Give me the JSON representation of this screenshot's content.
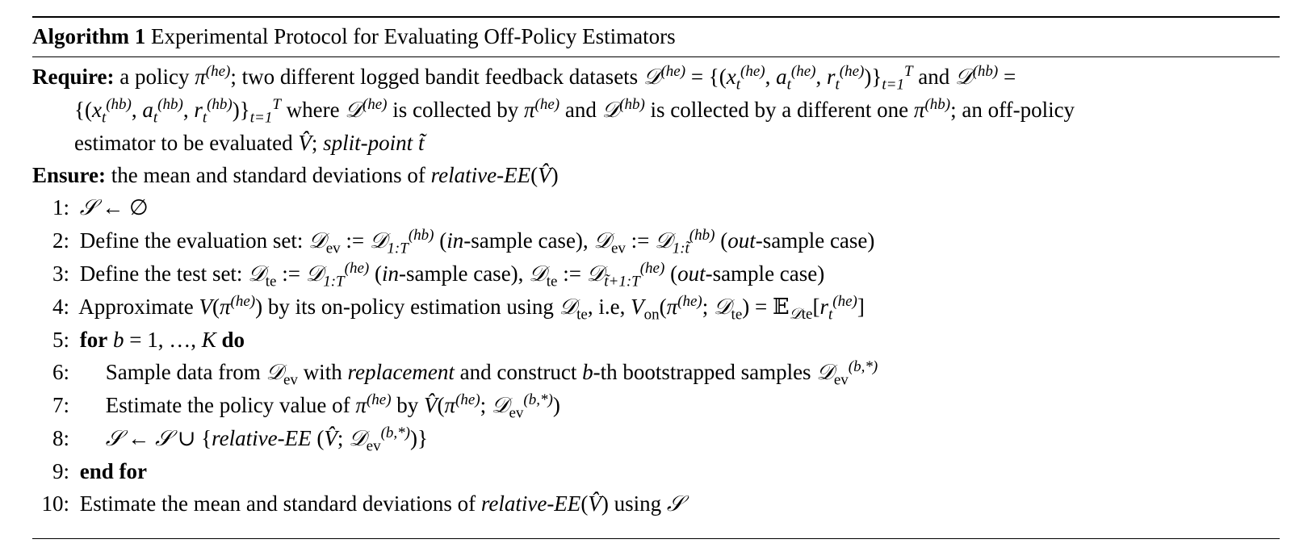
{
  "caption": {
    "label": "Algorithm 1",
    "title": "Experimental Protocol for Evaluating Off-Policy Estimators"
  },
  "require": {
    "keyword": "Require:",
    "t1": "a policy",
    "t2": "; two different logged bandit feedback datasets",
    "t3": "and",
    "t4": "where",
    "t5": "is collected by",
    "t6": "and",
    "t7": "is collected by a different one",
    "t8": "; an off-policy",
    "t9": "estimator to be evaluated",
    "t10": "split-point"
  },
  "ensure": {
    "keyword": "Ensure:",
    "text": "the mean and standard deviations of",
    "metric": "relative-EE"
  },
  "steps": [
    {
      "num": "1:"
    },
    {
      "num": "2:",
      "a": "Define the evaluation set:",
      "in_case": "in",
      "case_rest": "-sample case),",
      "out_case": "out",
      "case_rest2": "-sample case)"
    },
    {
      "num": "3:",
      "a": "Define the test set:",
      "in_case": "in",
      "case_rest": "-sample case),",
      "out_case": "out",
      "case_rest2": "-sample case)"
    },
    {
      "num": "4:",
      "a": "Approximate",
      "b": "by its on-policy estimation using",
      "c": ", i.e,"
    },
    {
      "num": "5:",
      "kw1": "for",
      "kw2": "do"
    },
    {
      "num": "6:",
      "a": "Sample data from",
      "b": "with",
      "c": "replacement",
      "d": "and construct",
      "e": "-th bootstrapped samples"
    },
    {
      "num": "7:",
      "a": "Estimate the policy value of",
      "b": "by"
    },
    {
      "num": "8:",
      "metric": "relative-EE"
    },
    {
      "num": "9:",
      "kw": "end for"
    },
    {
      "num": "10:",
      "a": "Estimate the mean and standard deviations of",
      "metric": "relative-EE",
      "b": "using"
    }
  ]
}
